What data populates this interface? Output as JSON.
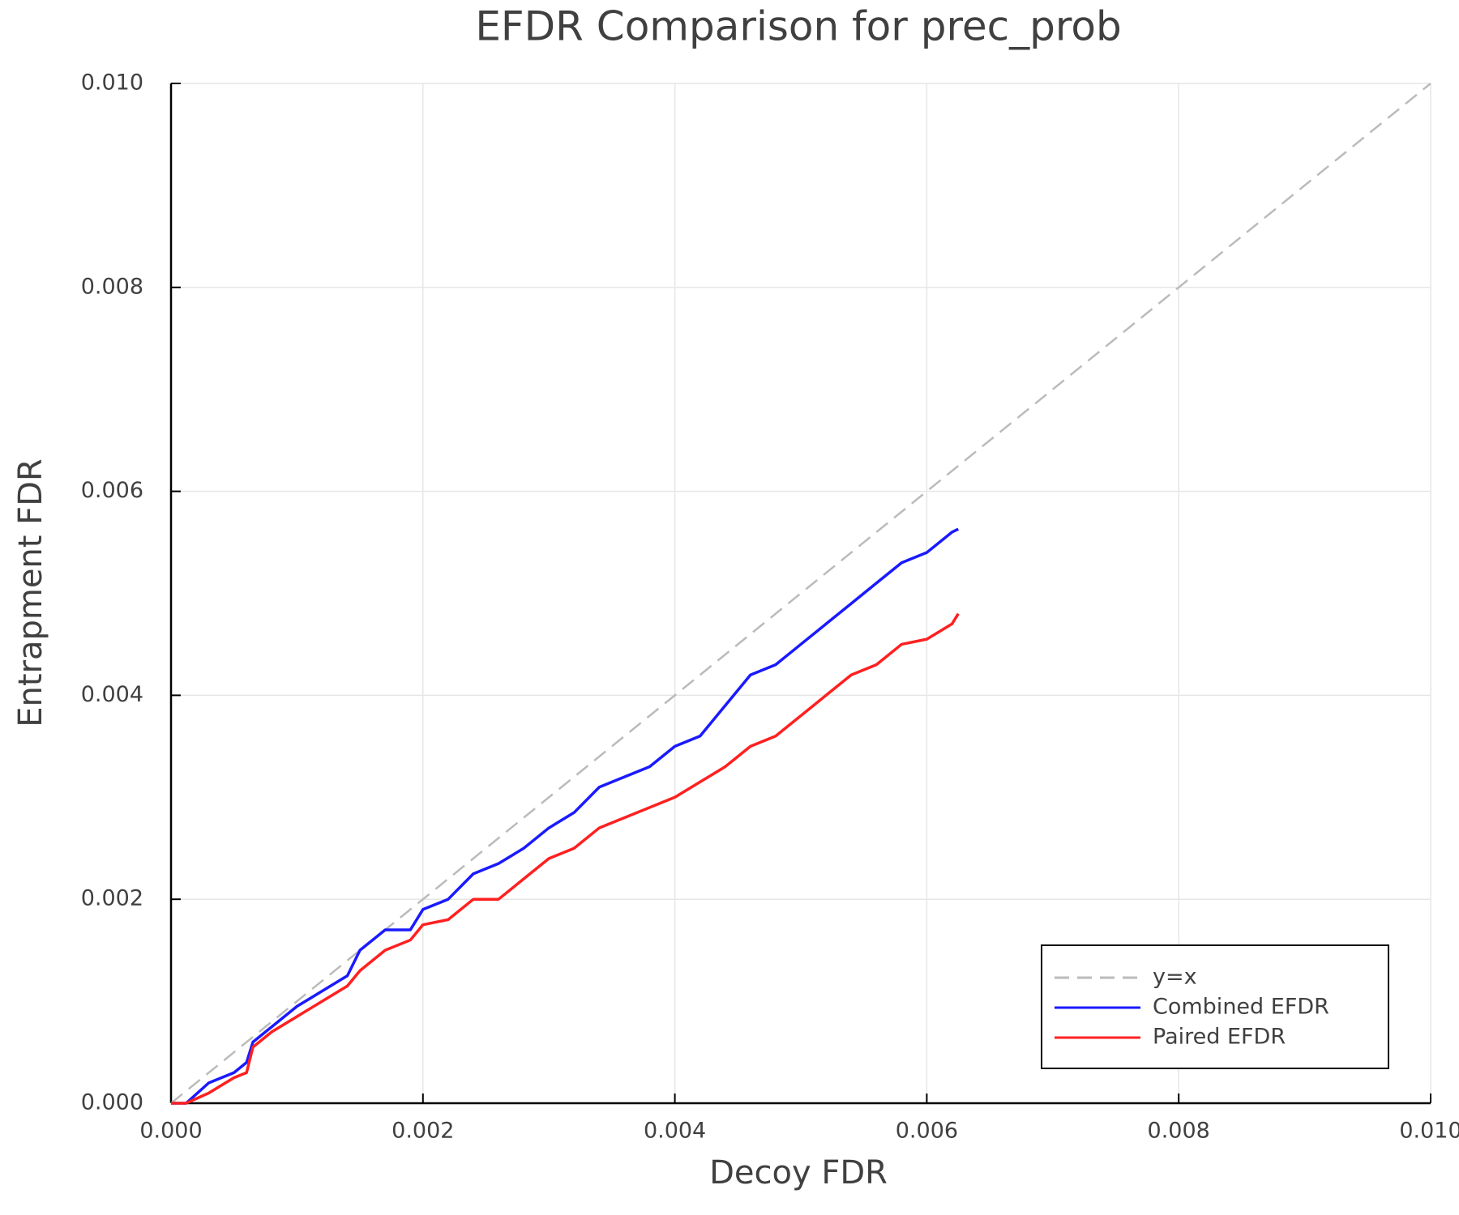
{
  "chart_data": {
    "type": "line",
    "title": "EFDR Comparison for prec_prob",
    "xlabel": "Decoy FDR",
    "ylabel": "Entrapment FDR",
    "xlim": [
      0,
      0.01
    ],
    "ylim": [
      0,
      0.01
    ],
    "xticks": [
      {
        "value": 0,
        "label": "0.000"
      },
      0.002,
      0.004,
      0.006,
      0.008,
      {
        "value": 0.01,
        "label": "0.010"
      }
    ],
    "yticks": [
      {
        "value": 0,
        "label": "0.000"
      },
      0.002,
      0.004,
      0.006,
      0.008,
      {
        "value": 0.01,
        "label": "0.010"
      }
    ],
    "grid": true,
    "legend": "bottom-right",
    "series": [
      {
        "name": "y=x",
        "color": "#bbbbbb",
        "dashed": true,
        "x": [
          0,
          0.01
        ],
        "values": [
          0,
          0.01
        ]
      },
      {
        "name": "Combined EFDR",
        "color": "#1a1aff",
        "x": [
          0,
          0.00012,
          0.0003,
          0.0005,
          0.0006,
          0.00065,
          0.0008,
          0.001,
          0.0012,
          0.0014,
          0.0015,
          0.0017,
          0.0019,
          0.002,
          0.0022,
          0.0024,
          0.0026,
          0.0028,
          0.003,
          0.0032,
          0.0034,
          0.0036,
          0.0038,
          0.004,
          0.0042,
          0.0044,
          0.0046,
          0.0048,
          0.005,
          0.0052,
          0.0054,
          0.0056,
          0.0058,
          0.006,
          0.0062,
          0.00625
        ],
        "values": [
          0,
          0,
          0.0002,
          0.0003,
          0.0004,
          0.0006,
          0.00075,
          0.00095,
          0.0011,
          0.00125,
          0.0015,
          0.0017,
          0.0017,
          0.0019,
          0.002,
          0.00225,
          0.00235,
          0.0025,
          0.0027,
          0.00285,
          0.0031,
          0.0032,
          0.0033,
          0.0035,
          0.0036,
          0.0039,
          0.0042,
          0.0043,
          0.0045,
          0.0047,
          0.0049,
          0.0051,
          0.0053,
          0.0054,
          0.0056,
          0.00563
        ]
      },
      {
        "name": "Paired EFDR",
        "color": "#ff2020",
        "x": [
          0,
          0.00012,
          0.0003,
          0.0005,
          0.0006,
          0.00065,
          0.0008,
          0.001,
          0.0012,
          0.0014,
          0.0015,
          0.0017,
          0.0019,
          0.002,
          0.0022,
          0.0024,
          0.0026,
          0.0028,
          0.003,
          0.0032,
          0.0034,
          0.0036,
          0.0038,
          0.004,
          0.0042,
          0.0044,
          0.0046,
          0.0048,
          0.005,
          0.0052,
          0.0054,
          0.0056,
          0.0058,
          0.006,
          0.0062,
          0.00625
        ],
        "values": [
          0,
          0,
          0.0001,
          0.00025,
          0.0003,
          0.00055,
          0.0007,
          0.00085,
          0.001,
          0.00115,
          0.0013,
          0.0015,
          0.0016,
          0.00175,
          0.0018,
          0.002,
          0.002,
          0.0022,
          0.0024,
          0.0025,
          0.0027,
          0.0028,
          0.0029,
          0.003,
          0.00315,
          0.0033,
          0.0035,
          0.0036,
          0.0038,
          0.004,
          0.0042,
          0.0043,
          0.0045,
          0.00455,
          0.0047,
          0.0048
        ]
      }
    ]
  }
}
